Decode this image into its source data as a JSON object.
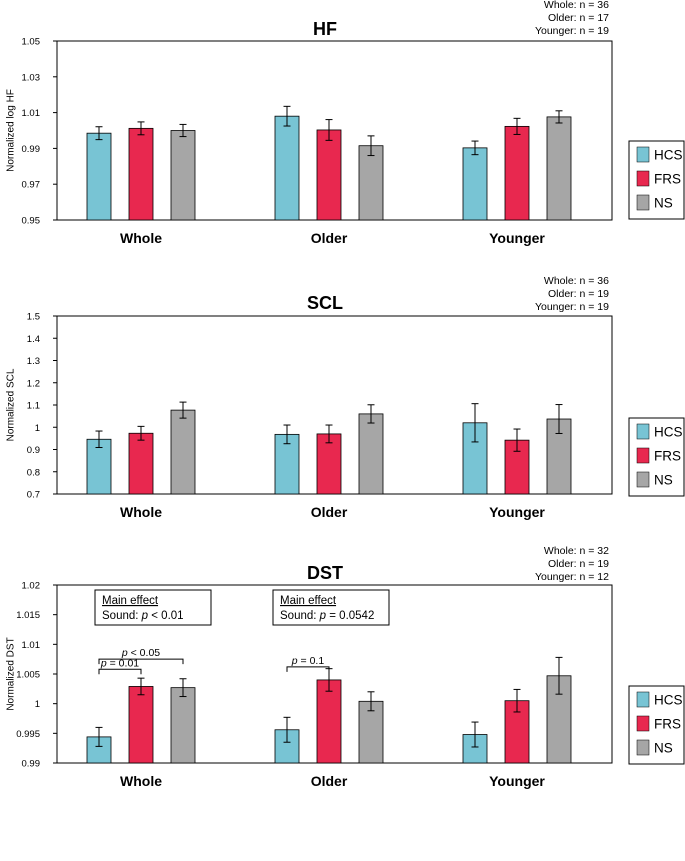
{
  "chart_data": [
    {
      "type": "bar",
      "title": "HF",
      "ylabel": "Normalized log HF",
      "xlabel": "",
      "ylim": [
        0.95,
        1.05
      ],
      "yticks": [
        0.95,
        0.97,
        0.99,
        1.01,
        1.03,
        1.05
      ],
      "ytick_labels": [
        "0.95",
        "0.97",
        "0.99",
        "1.01",
        "1.03",
        "1.05"
      ],
      "categories": [
        "Whole",
        "Older",
        "Younger"
      ],
      "series": [
        {
          "name": "HCS",
          "color": "#78c4d4",
          "values": [
            0.9985,
            1.008,
            0.9903
          ],
          "errors": [
            0.0036,
            0.0055,
            0.0038
          ]
        },
        {
          "name": "FRS",
          "color": "#e8284f",
          "values": [
            1.0012,
            1.0003,
            1.0023
          ],
          "errors": [
            0.0036,
            0.0058,
            0.0045
          ]
        },
        {
          "name": "NS",
          "color": "#a6a6a6",
          "values": [
            1.0,
            0.9915,
            1.0076
          ],
          "errors": [
            0.0034,
            0.0055,
            0.0034
          ]
        }
      ],
      "n_labels": [
        "Whole: n = 36",
        "Older: n = 17",
        "Younger: n = 19"
      ],
      "legend_position": "right",
      "annotations": [],
      "sig_brackets": []
    },
    {
      "type": "bar",
      "title": "SCL",
      "ylabel": "Normalized SCL",
      "xlabel": "",
      "ylim": [
        0.7,
        1.5
      ],
      "yticks": [
        0.7,
        0.8,
        0.9,
        1.0,
        1.1,
        1.2,
        1.3,
        1.4,
        1.5
      ],
      "ytick_labels": [
        "0.7",
        "0.8",
        "0.9",
        "1",
        "1.1",
        "1.2",
        "1.3",
        "1.4",
        "1.5"
      ],
      "categories": [
        "Whole",
        "Older",
        "Younger"
      ],
      "series": [
        {
          "name": "HCS",
          "color": "#78c4d4",
          "values": [
            0.946,
            0.968,
            1.02
          ],
          "errors": [
            0.037,
            0.042,
            0.086
          ]
        },
        {
          "name": "FRS",
          "color": "#e8284f",
          "values": [
            0.973,
            0.97,
            0.942
          ],
          "errors": [
            0.031,
            0.04,
            0.05
          ]
        },
        {
          "name": "NS",
          "color": "#a6a6a6",
          "values": [
            1.077,
            1.06,
            1.037
          ],
          "errors": [
            0.036,
            0.041,
            0.065
          ]
        }
      ],
      "n_labels": [
        "Whole: n = 36",
        "Older: n = 19",
        "Younger: n = 19"
      ],
      "legend_position": "right",
      "annotations": [],
      "sig_brackets": []
    },
    {
      "type": "bar",
      "title": "DST",
      "ylabel": "Normalized DST",
      "xlabel": "",
      "ylim": [
        0.99,
        1.02
      ],
      "yticks": [
        0.99,
        0.995,
        1.0,
        1.005,
        1.01,
        1.015,
        1.02
      ],
      "ytick_labels": [
        "0.99",
        "0.995",
        "1",
        "1.005",
        "1.01",
        "1.015",
        "1.02"
      ],
      "categories": [
        "Whole",
        "Older",
        "Younger"
      ],
      "series": [
        {
          "name": "HCS",
          "color": "#78c4d4",
          "values": [
            0.9944,
            0.9956,
            0.9948
          ],
          "errors": [
            0.0016,
            0.0021,
            0.0021
          ]
        },
        {
          "name": "FRS",
          "color": "#e8284f",
          "values": [
            1.0029,
            1.004,
            1.0005
          ],
          "errors": [
            0.0014,
            0.0019,
            0.0019
          ]
        },
        {
          "name": "NS",
          "color": "#a6a6a6",
          "values": [
            1.0027,
            1.0004,
            1.0047
          ],
          "errors": [
            0.0015,
            0.0016,
            0.0031
          ]
        }
      ],
      "n_labels": [
        "Whole: n = 32",
        "Older: n = 19",
        "Younger: n = 12"
      ],
      "legend_position": "right",
      "annotations": [
        {
          "heading": "Main effect",
          "prefix": "Sound: ",
          "p": "p",
          "rest": " < 0.01",
          "group": "Whole"
        },
        {
          "heading": "Main effect",
          "prefix": "Sound: ",
          "p": "p",
          "rest": " = 0.0542",
          "group": "Older"
        }
      ],
      "sig_brackets": [
        {
          "group": "Whole",
          "from": "HCS",
          "to": "FRS",
          "p": "p",
          "label": " = 0.01",
          "y": 1.0058
        },
        {
          "group": "Whole",
          "from": "HCS",
          "to": "NS",
          "p": "p",
          "label": " < 0.05",
          "y": 1.0075
        },
        {
          "group": "Older",
          "from": "HCS",
          "to": "FRS",
          "p": "p",
          "label": " = 0.1",
          "y": 1.0062
        }
      ]
    }
  ]
}
